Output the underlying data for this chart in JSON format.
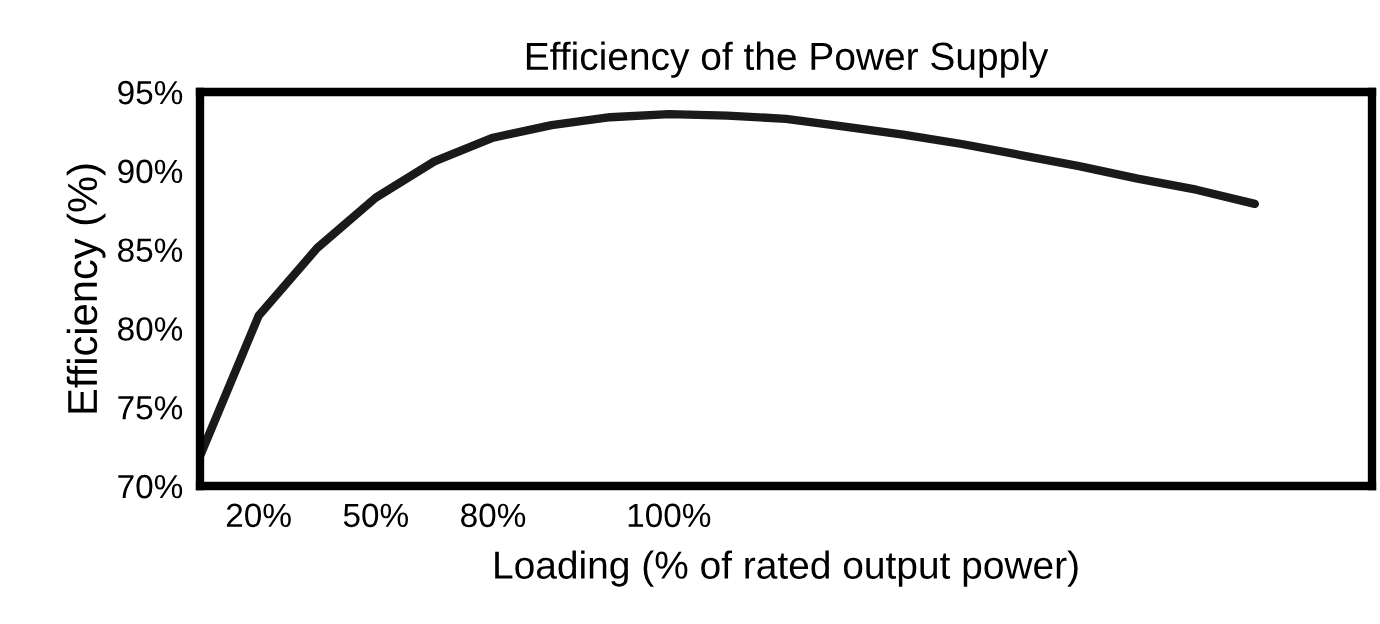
{
  "chart_data": {
    "type": "line",
    "title": "Efficiency of the Power Supply",
    "xlabel": "Loading (% of rated output power)",
    "ylabel": "Efficiency (%)",
    "categories": [
      null,
      "20%",
      null,
      "50%",
      null,
      "80%",
      null,
      null,
      "100%",
      null,
      null,
      null,
      null,
      null,
      null,
      null,
      null,
      null,
      null
    ],
    "series": [
      {
        "color": "#1a1a1a",
        "values": [
          71.9,
          80.8,
          85.1,
          88.3,
          90.6,
          92.1,
          92.9,
          93.4,
          93.6,
          93.5,
          93.3,
          92.8,
          92.3,
          91.7,
          91.0,
          90.3,
          89.5,
          88.8,
          87.9
        ]
      }
    ],
    "ylim": [
      70,
      95
    ],
    "yticks": [
      {
        "value": 70,
        "label": "70%"
      },
      {
        "value": 75,
        "label": "75%"
      },
      {
        "value": 80,
        "label": "80%"
      },
      {
        "value": 85,
        "label": "85%"
      },
      {
        "value": 90,
        "label": "90%"
      },
      {
        "value": 95,
        "label": "95%"
      }
    ],
    "grid": false,
    "legend": false,
    "marker": "none",
    "line_style": "solid"
  }
}
